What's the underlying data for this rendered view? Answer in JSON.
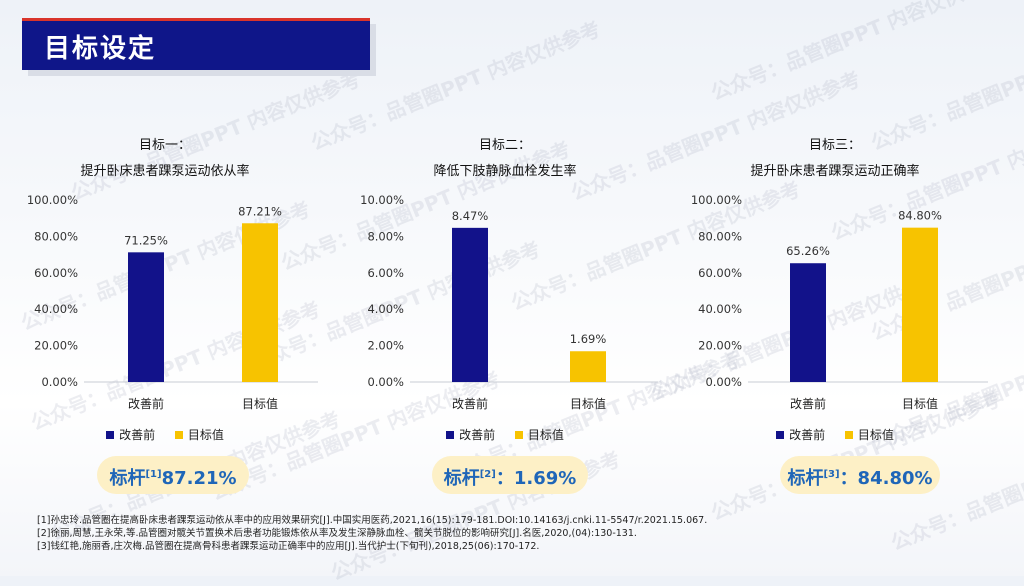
{
  "header": {
    "title": "目标设定"
  },
  "watermark": "公众号：品管圈PPT 内容仅供参考",
  "colors": {
    "before": "#12128a",
    "target": "#f7c300",
    "title_bg": "#0f1689",
    "accent": "#1f66b8"
  },
  "legend": {
    "before": "改善前",
    "target": "目标值"
  },
  "benchmarks": [
    {
      "prefix": "标杆",
      "sup": "[1]",
      "value": "87.21%"
    },
    {
      "prefix": "标杆",
      "sup": "[2]",
      "value": "：1.69%"
    },
    {
      "prefix": "标杆",
      "sup": "[3]",
      "value": "：84.80%"
    }
  ],
  "chart_data": [
    {
      "type": "bar",
      "title": "目标一：",
      "subtitle": "提升卧床患者踝泵运动依从率",
      "categories": [
        "改善前",
        "目标值"
      ],
      "values": [
        71.25,
        87.21
      ],
      "value_labels": [
        "71.25%",
        "87.21%"
      ],
      "ylim": [
        0,
        100
      ],
      "yticks": [
        "0.00%",
        "20.00%",
        "40.00%",
        "60.00%",
        "80.00%",
        "100.00%"
      ],
      "ytick_values": [
        0,
        20,
        40,
        60,
        80,
        100
      ],
      "grid": false,
      "legend": "bottom"
    },
    {
      "type": "bar",
      "title": "目标二：",
      "subtitle": "降低下肢静脉血栓发生率",
      "categories": [
        "改善前",
        "目标值"
      ],
      "values": [
        8.47,
        1.69
      ],
      "value_labels": [
        "8.47%",
        "1.69%"
      ],
      "ylim": [
        0,
        10
      ],
      "yticks": [
        "0.00%",
        "2.00%",
        "4.00%",
        "6.00%",
        "8.00%",
        "10.00%"
      ],
      "ytick_values": [
        0,
        2,
        4,
        6,
        8,
        10
      ],
      "grid": false,
      "legend": "bottom"
    },
    {
      "type": "bar",
      "title": "目标三：",
      "subtitle": "提升卧床患者踝泵运动正确率",
      "categories": [
        "改善前",
        "目标值"
      ],
      "values": [
        65.26,
        84.8
      ],
      "value_labels": [
        "65.26%",
        "84.80%"
      ],
      "ylim": [
        0,
        100
      ],
      "yticks": [
        "0.00%",
        "20.00%",
        "40.00%",
        "60.00%",
        "80.00%",
        "100.00%"
      ],
      "ytick_values": [
        0,
        20,
        40,
        60,
        80,
        100
      ],
      "grid": false,
      "legend": "bottom"
    }
  ],
  "references": [
    "[1]孙忠玲.品管圈在提高卧床患者踝泵运动依从率中的应用效果研究[J].中国实用医药,2021,16(15):179-181.DOI:10.14163/j.cnki.11-5547/r.2021.15.067.",
    "[2]徐丽,周慧,王永荣,等.品管圈对髋关节置换术后患者功能锻炼依从率及发生深静脉血栓、髋关节脱位的影响研究[J].名医,2020,(04):130-131.",
    "[3]钱红艳,施丽香,庄次梅.品管圈在提高骨科患者踝泵运动正确率中的应用[J].当代护士(下旬刊),2018,25(06):170-172."
  ]
}
